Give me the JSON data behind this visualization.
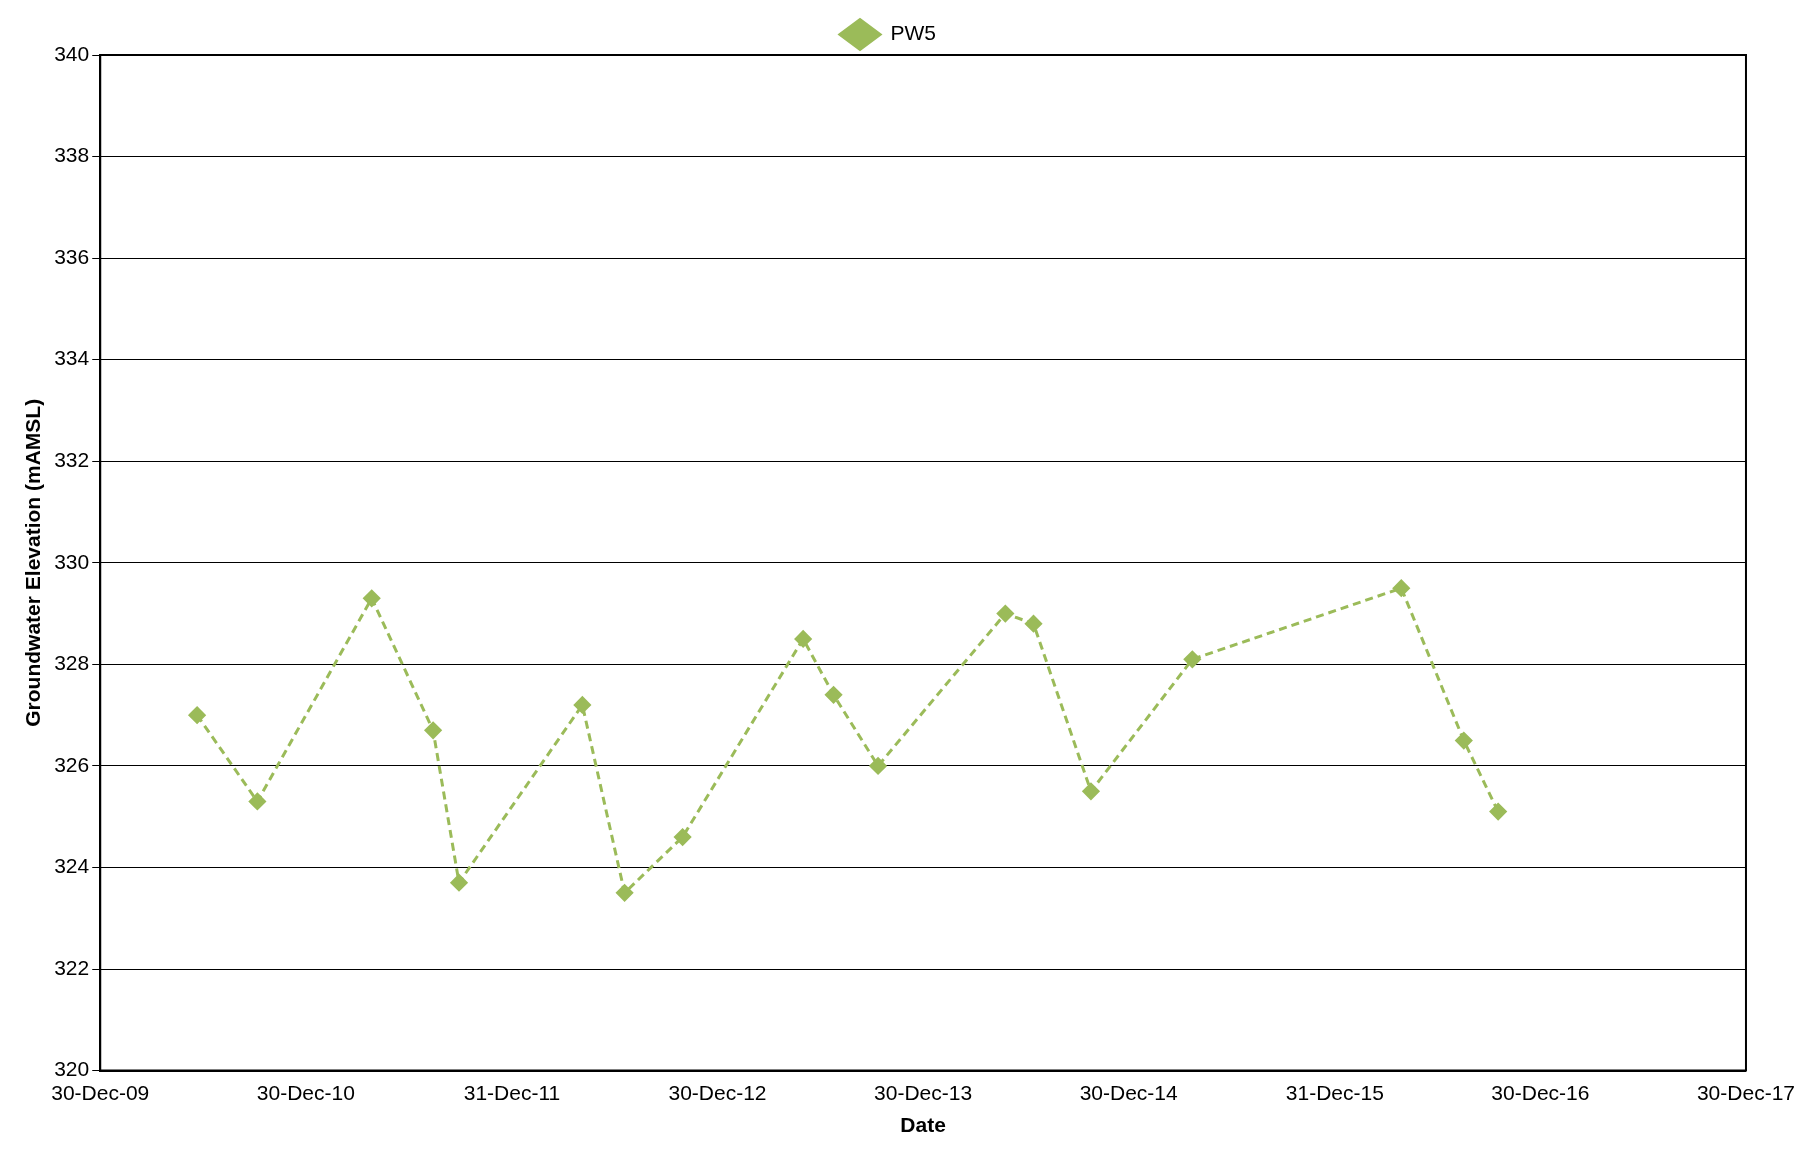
{
  "chart_data": {
    "type": "line",
    "xlabel": "Date",
    "ylabel": "Groundwater Elevation (mAMSL)",
    "x": [
      "2010-06-20",
      "2010-10-05",
      "2011-04-26",
      "2011-08-13",
      "2011-09-28",
      "2012-05-04",
      "2012-07-18",
      "2012-10-29",
      "2013-05-31",
      "2013-07-24",
      "2013-10-11",
      "2014-05-25",
      "2014-07-14",
      "2014-10-24",
      "2015-04-22",
      "2016-04-27",
      "2016-08-16",
      "2016-10-16"
    ],
    "series": [
      {
        "name": "PW5",
        "color": "#9bbb59",
        "values": [
          327.0,
          325.3,
          329.3,
          326.7,
          323.7,
          327.2,
          323.5,
          324.6,
          328.5,
          327.4,
          326.0,
          329.0,
          328.8,
          325.5,
          328.1,
          329.5,
          326.5,
          325.1
        ]
      }
    ],
    "xlim": [
      "2009-12-30",
      "2017-12-30"
    ],
    "xticks": [
      {
        "value": "2009-12-30",
        "label": "30-Dec-09"
      },
      {
        "value": "2010-12-30",
        "label": "30-Dec-10"
      },
      {
        "value": "2011-12-31",
        "label": "31-Dec-11"
      },
      {
        "value": "2012-12-30",
        "label": "30-Dec-12"
      },
      {
        "value": "2013-12-30",
        "label": "30-Dec-13"
      },
      {
        "value": "2014-12-30",
        "label": "30-Dec-14"
      },
      {
        "value": "2015-12-31",
        "label": "31-Dec-15"
      },
      {
        "value": "2016-12-30",
        "label": "30-Dec-16"
      },
      {
        "value": "2017-12-30",
        "label": "30-Dec-17"
      }
    ],
    "ylim": [
      320,
      340
    ],
    "yticks": [
      320,
      322,
      324,
      326,
      328,
      330,
      332,
      334,
      336,
      338,
      340
    ],
    "grid": "y",
    "legend": "top",
    "marker": "diamond",
    "line_style": "dashed"
  }
}
